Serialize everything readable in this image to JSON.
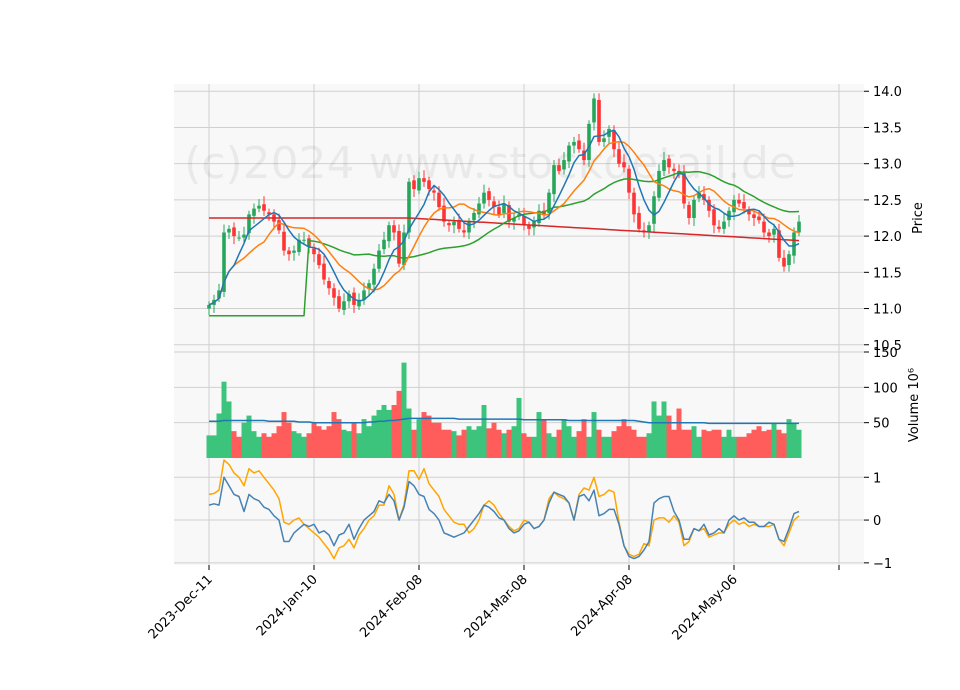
{
  "chart_data": {
    "type": "candlestick",
    "watermark": "(c)2024 www.stockdetail.de",
    "colors": {
      "up": "#26a65b",
      "down": "#ff3333",
      "ma_fast": "#1f77b4",
      "ma_mid": "#ff7f0e",
      "ma_slow": "#2ca02c",
      "ma_long": "#d62728",
      "vol_avg": "#1f77b4",
      "osc_a": "#4682b4",
      "osc_b": "#ffa500"
    },
    "x_ticks": [
      "2023-Dec-11",
      "2024-Jan-10",
      "2024-Feb-08",
      "2024-Mar-08",
      "2024-Apr-08",
      "2024-May-06"
    ],
    "x_tick_index": [
      0,
      21,
      42,
      63,
      84,
      105
    ],
    "price": {
      "ylabel": "Price",
      "ylim": [
        10.4,
        14.1
      ],
      "ticks": [
        "10.5",
        "11.0",
        "11.5",
        "12.0",
        "12.5",
        "13.0",
        "13.5",
        "14.0"
      ],
      "tick_values": [
        10.5,
        11.0,
        11.5,
        12.0,
        12.5,
        13.0,
        13.5,
        14.0
      ],
      "close": [
        11.05,
        11.12,
        11.25,
        12.05,
        12.1,
        12.0,
        11.98,
        12.02,
        12.3,
        12.38,
        12.42,
        12.35,
        12.3,
        12.2,
        12.08,
        11.8,
        11.75,
        11.8,
        11.95,
        11.95,
        11.85,
        11.75,
        11.6,
        11.4,
        11.28,
        11.15,
        11.0,
        11.1,
        11.2,
        11.05,
        11.12,
        11.25,
        11.35,
        11.55,
        11.8,
        11.95,
        12.15,
        12.05,
        11.62,
        12.05,
        12.75,
        12.65,
        12.8,
        12.75,
        12.65,
        12.6,
        12.4,
        12.2,
        12.15,
        12.2,
        12.1,
        12.05,
        12.2,
        12.32,
        12.45,
        12.6,
        12.5,
        12.4,
        12.3,
        12.45,
        12.2,
        12.25,
        12.3,
        12.15,
        12.1,
        12.2,
        12.35,
        12.3,
        12.6,
        12.98,
        12.9,
        13.05,
        13.25,
        13.3,
        13.2,
        13.05,
        13.55,
        13.9,
        13.3,
        13.35,
        13.48,
        13.2,
        13.0,
        12.95,
        12.6,
        12.3,
        12.1,
        12.05,
        12.15,
        12.55,
        12.9,
        13.05,
        12.95,
        12.9,
        12.85,
        12.45,
        12.25,
        12.5,
        12.6,
        12.5,
        12.35,
        12.15,
        12.1,
        12.2,
        12.35,
        12.5,
        12.45,
        12.38,
        12.3,
        12.25,
        12.22,
        12.05,
        12.0,
        12.1,
        11.7,
        11.58,
        11.75,
        12.05,
        12.2
      ]
    },
    "volume": {
      "ylabel": "Volume  10⁶",
      "ylim": [
        0,
        150
      ],
      "ticks": [
        "50",
        "100",
        "150"
      ],
      "tick_values": [
        50,
        100,
        150
      ],
      "values": [
        32,
        32,
        63,
        108,
        80,
        38,
        30,
        50,
        60,
        38,
        30,
        35,
        30,
        35,
        45,
        65,
        50,
        38,
        35,
        30,
        35,
        50,
        45,
        40,
        45,
        65,
        55,
        40,
        38,
        50,
        35,
        55,
        45,
        60,
        68,
        75,
        68,
        75,
        95,
        135,
        70,
        40,
        55,
        65,
        60,
        50,
        50,
        40,
        40,
        38,
        32,
        40,
        45,
        40,
        45,
        75,
        42,
        50,
        40,
        35,
        40,
        45,
        85,
        35,
        30,
        30,
        65,
        55,
        35,
        30,
        40,
        55,
        45,
        30,
        38,
        55,
        30,
        65,
        40,
        30,
        30,
        38,
        45,
        55,
        45,
        40,
        30,
        30,
        35,
        80,
        60,
        80,
        60,
        40,
        70,
        40,
        40,
        45,
        30,
        40,
        38,
        40,
        40,
        30,
        40,
        30,
        30,
        30,
        35,
        40,
        45,
        38,
        40,
        50,
        40,
        35,
        55,
        50,
        40
      ],
      "average": [
        52,
        52,
        52,
        53,
        53,
        53,
        53,
        53,
        53,
        53,
        53,
        53,
        52,
        52,
        52,
        52,
        52,
        52,
        51,
        51,
        51,
        50,
        50,
        50,
        50,
        50,
        50,
        50,
        50,
        50,
        50,
        50,
        51,
        51,
        52,
        52,
        53,
        53,
        54,
        55,
        56,
        56,
        56,
        56,
        56,
        56,
        56,
        56,
        56,
        56,
        55,
        55,
        55,
        55,
        55,
        55,
        55,
        55,
        55,
        55,
        55,
        55,
        55,
        54,
        54,
        54,
        54,
        54,
        54,
        54,
        54,
        54,
        53,
        53,
        53,
        53,
        53,
        53,
        53,
        53,
        53,
        53,
        53,
        53,
        53,
        53,
        52,
        51,
        50,
        50,
        50,
        50,
        50,
        50,
        50,
        50,
        50,
        50,
        50,
        50,
        49,
        49,
        49,
        49,
        49,
        49,
        49,
        49,
        49,
        49,
        49,
        49,
        49,
        49,
        49,
        49,
        49,
        49,
        49
      ]
    },
    "oscillator": {
      "ylim": [
        -1.05,
        1.45
      ],
      "ticks": [
        "−1",
        "0",
        "1"
      ],
      "tick_values": [
        -1,
        0,
        1
      ],
      "series_a": [
        0.35,
        0.38,
        0.35,
        1.0,
        0.8,
        0.6,
        0.55,
        0.2,
        0.6,
        0.5,
        0.45,
        0.3,
        0.25,
        0.1,
        0.0,
        -0.5,
        -0.5,
        -0.3,
        -0.2,
        -0.1,
        -0.15,
        -0.1,
        -0.3,
        -0.25,
        -0.35,
        -0.6,
        -0.35,
        -0.3,
        -0.1,
        -0.45,
        -0.2,
        0.0,
        0.1,
        0.2,
        0.45,
        0.4,
        0.6,
        0.45,
        0.0,
        0.3,
        0.9,
        0.8,
        0.6,
        0.55,
        0.25,
        0.15,
        0.0,
        -0.3,
        -0.35,
        -0.4,
        -0.35,
        -0.3,
        -0.15,
        0.0,
        0.15,
        0.35,
        0.3,
        0.2,
        0.05,
        0.0,
        -0.2,
        -0.3,
        -0.25,
        -0.1,
        -0.05,
        -0.2,
        -0.15,
        0.0,
        0.4,
        0.65,
        0.6,
        0.55,
        0.4,
        0.0,
        0.55,
        0.6,
        0.45,
        0.7,
        0.1,
        0.15,
        0.25,
        0.25,
        -0.1,
        -0.6,
        -0.85,
        -0.9,
        -0.85,
        -0.7,
        -0.5,
        0.4,
        0.5,
        0.55,
        0.55,
        0.2,
        0.0,
        -0.45,
        -0.45,
        -0.2,
        -0.25,
        -0.1,
        -0.35,
        -0.3,
        -0.2,
        -0.3,
        0.0,
        0.1,
        0.0,
        0.05,
        -0.05,
        -0.05,
        -0.15,
        -0.15,
        -0.05,
        -0.1,
        -0.45,
        -0.5,
        -0.2,
        0.15,
        0.2
      ],
      "series_b": [
        0.6,
        0.62,
        0.7,
        1.4,
        1.3,
        1.1,
        1.0,
        0.8,
        1.2,
        1.1,
        1.15,
        1.0,
        0.85,
        0.7,
        0.5,
        -0.05,
        -0.1,
        0.0,
        0.05,
        -0.1,
        -0.2,
        -0.3,
        -0.4,
        -0.55,
        -0.7,
        -0.9,
        -0.65,
        -0.6,
        -0.45,
        -0.65,
        -0.35,
        -0.2,
        0.0,
        0.1,
        0.35,
        0.35,
        0.8,
        0.6,
        0.0,
        0.35,
        1.15,
        1.15,
        0.95,
        1.2,
        0.85,
        0.7,
        0.55,
        0.25,
        0.1,
        -0.05,
        -0.1,
        -0.1,
        -0.3,
        -0.2,
        0.0,
        0.35,
        0.45,
        0.35,
        0.15,
        0.0,
        -0.15,
        -0.25,
        -0.2,
        0.0,
        -0.05,
        -0.2,
        -0.15,
        0.0,
        0.5,
        0.65,
        0.55,
        0.5,
        0.4,
        0.0,
        0.6,
        0.75,
        0.7,
        1.0,
        0.55,
        0.6,
        0.7,
        0.65,
        -0.05,
        -0.6,
        -0.8,
        -0.85,
        -0.8,
        -0.55,
        -0.6,
        0.0,
        0.05,
        0.05,
        -0.05,
        0.1,
        -0.05,
        -0.6,
        -0.5,
        -0.2,
        -0.25,
        -0.2,
        -0.4,
        -0.35,
        -0.3,
        -0.3,
        -0.1,
        0.0,
        -0.1,
        -0.05,
        -0.15,
        -0.1,
        -0.15,
        -0.15,
        -0.15,
        -0.1,
        -0.45,
        -0.6,
        -0.3,
        0.0,
        0.1
      ]
    }
  }
}
